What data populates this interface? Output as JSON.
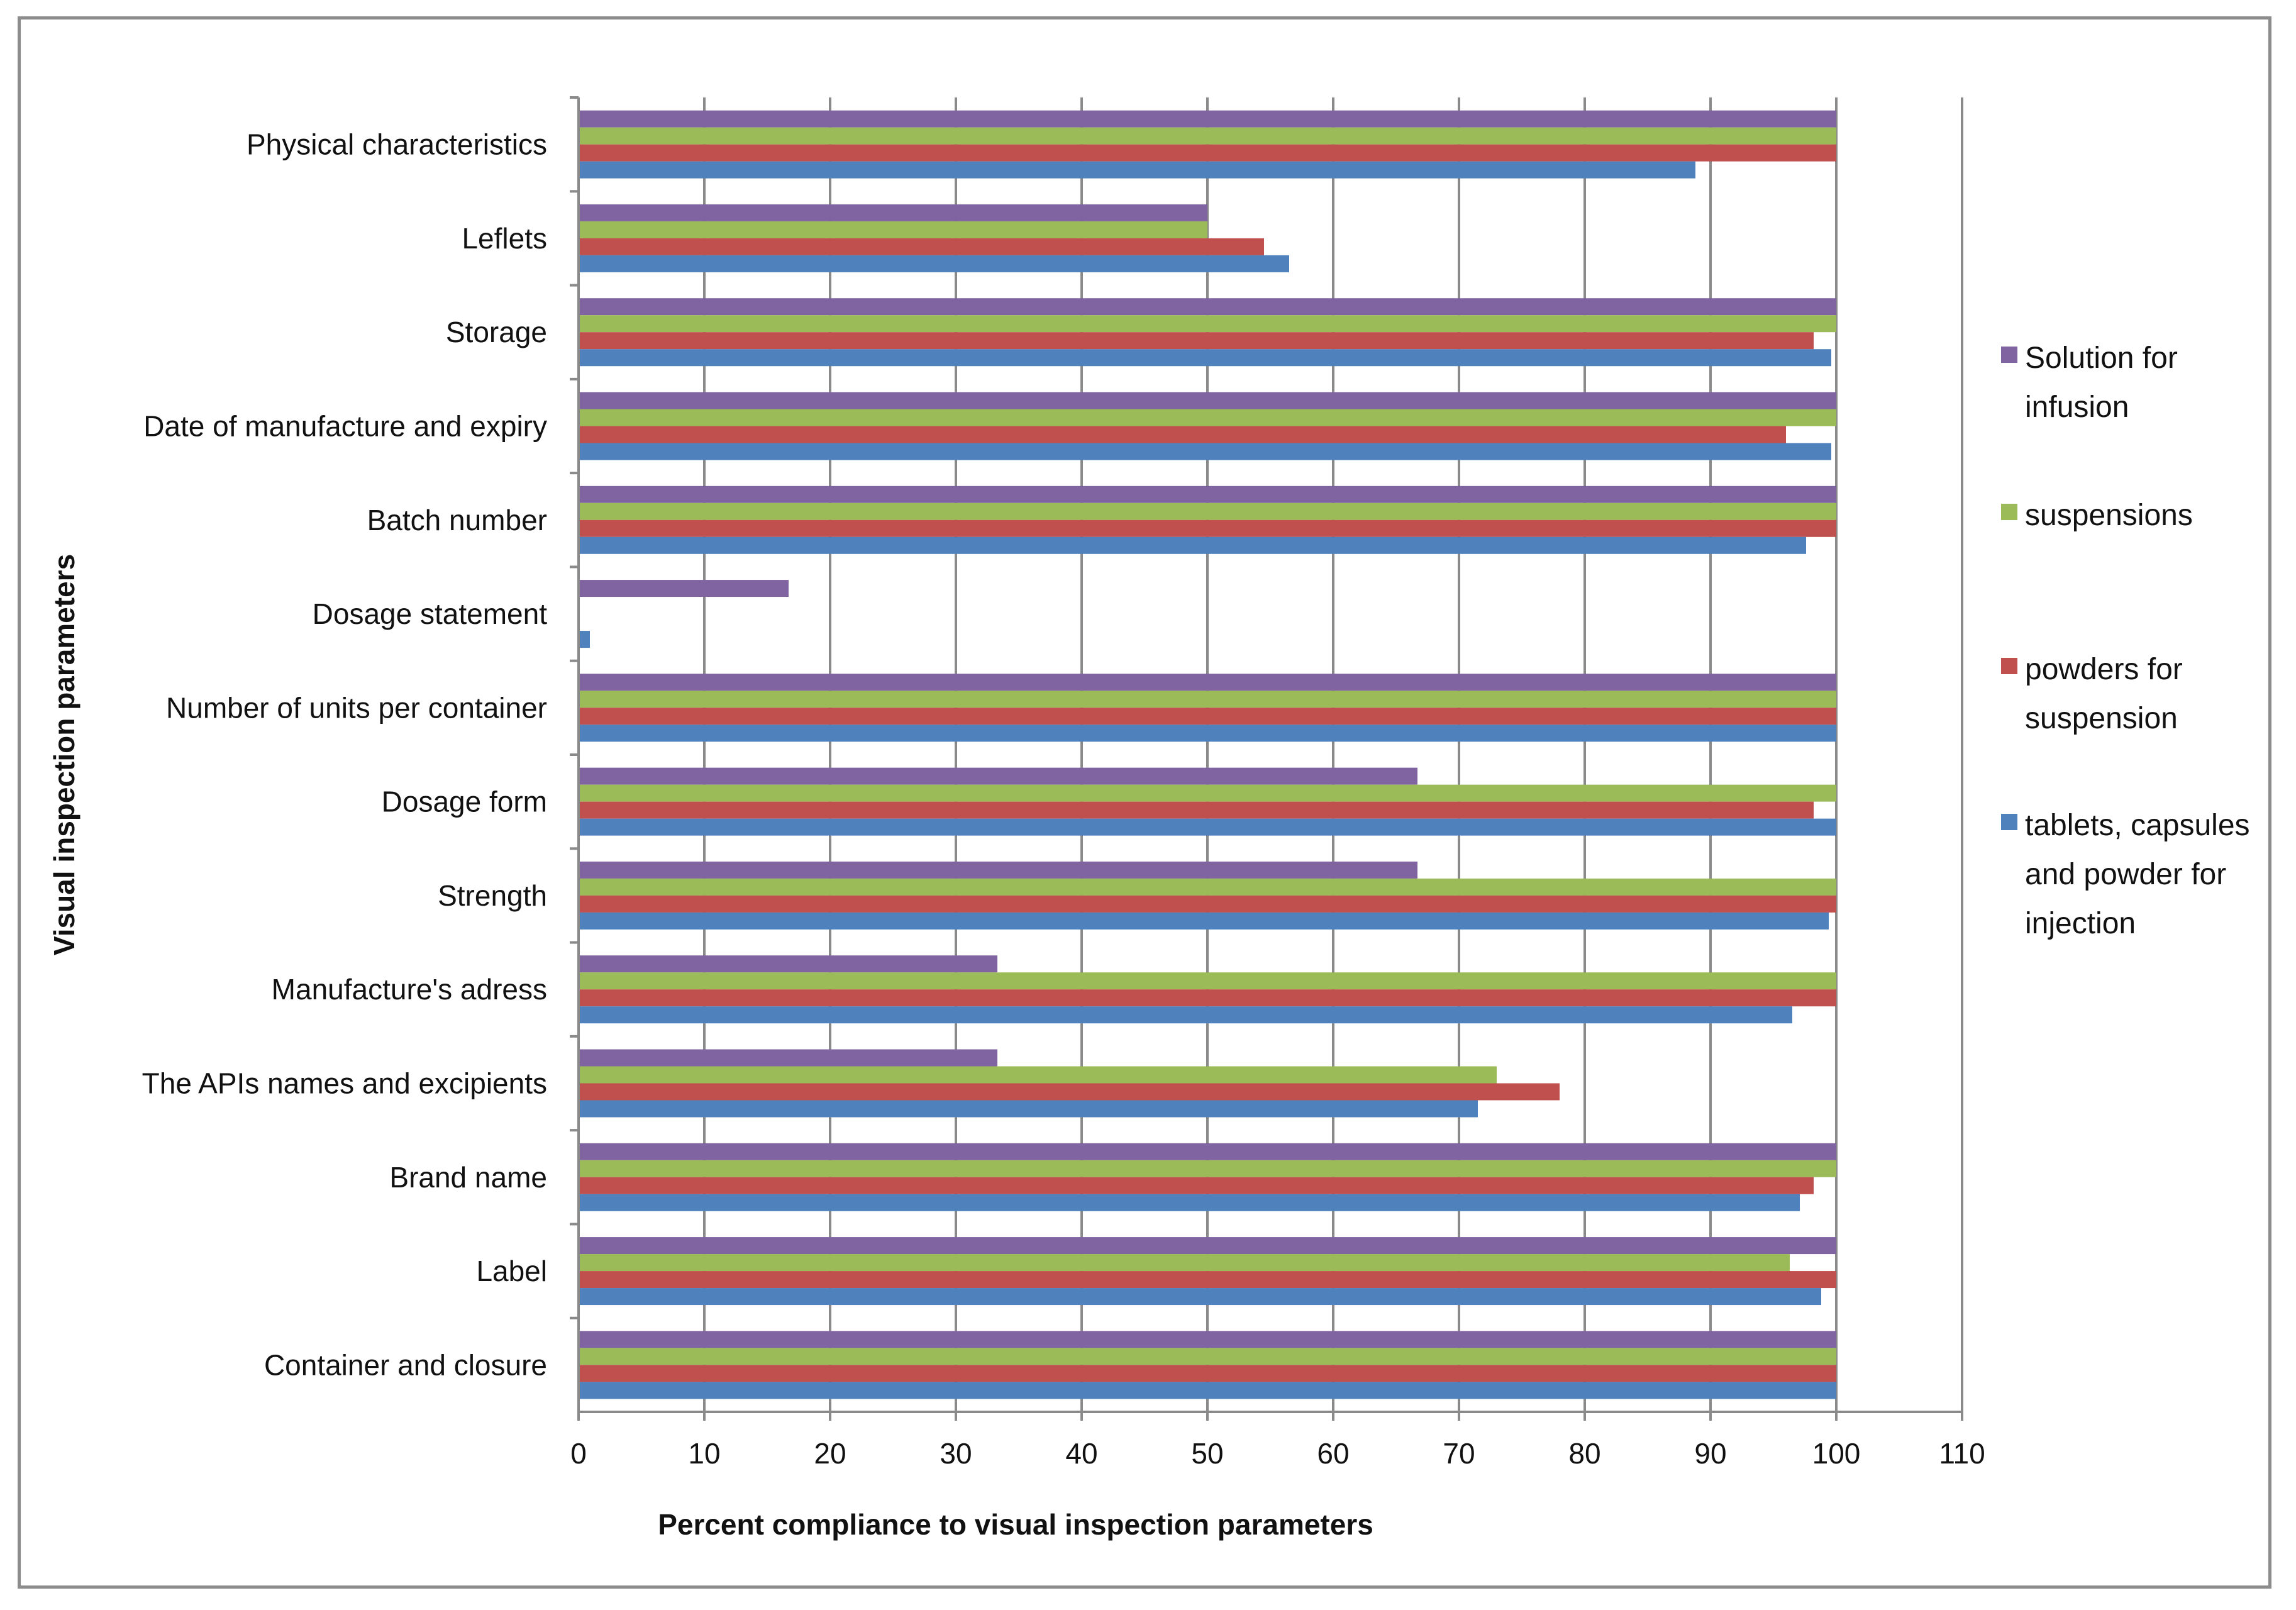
{
  "chart_data": {
    "type": "bar",
    "orientation": "horizontal",
    "title": "",
    "xlabel": "Percent compliance to visual inspection parameters",
    "ylabel": "Visual inspection parameters",
    "xlim": [
      0,
      110
    ],
    "xticks": [
      0,
      10,
      20,
      30,
      40,
      50,
      60,
      70,
      80,
      90,
      100,
      110
    ],
    "grid": "vertical",
    "legend_position": "right",
    "categories": [
      "Container and closure",
      "Label",
      "Brand name",
      "The APIs names and excipients",
      "Manufacture's adress",
      "Strength",
      "Dosage form",
      "Number of units per container",
      "Dosage statement",
      "Batch number",
      "Date of manufacture and expiry",
      "Storage",
      "Leflets",
      "Physical characteristics"
    ],
    "series": [
      {
        "name": "tablets, capsules and powder for injection",
        "legend_lines": [
          "tablets, capsules",
          "and powder for",
          "injection"
        ],
        "color": "#4f81bd",
        "values": [
          100,
          98.8,
          97.1,
          71.5,
          96.5,
          99.4,
          100,
          100,
          0.9,
          97.6,
          99.6,
          99.6,
          56.5,
          88.8
        ]
      },
      {
        "name": "powders for suspension",
        "legend_lines": [
          "powders for",
          "suspension"
        ],
        "color": "#c0504d",
        "values": [
          100,
          100,
          98.2,
          78,
          100,
          100,
          98.2,
          100,
          0,
          100,
          96,
          98.2,
          54.5,
          100
        ]
      },
      {
        "name": "suspensions",
        "legend_lines": [
          "suspensions"
        ],
        "color": "#9bbb59",
        "values": [
          100,
          96.3,
          100,
          73,
          100,
          100,
          100,
          100,
          0,
          100,
          100,
          100,
          50,
          100
        ]
      },
      {
        "name": "Solution for infusion",
        "legend_lines": [
          "Solution for",
          "infusion"
        ],
        "color": "#8064a2",
        "values": [
          100,
          100,
          100,
          33.3,
          33.3,
          66.7,
          66.7,
          100,
          16.7,
          100,
          100,
          100,
          50,
          100
        ]
      }
    ]
  }
}
